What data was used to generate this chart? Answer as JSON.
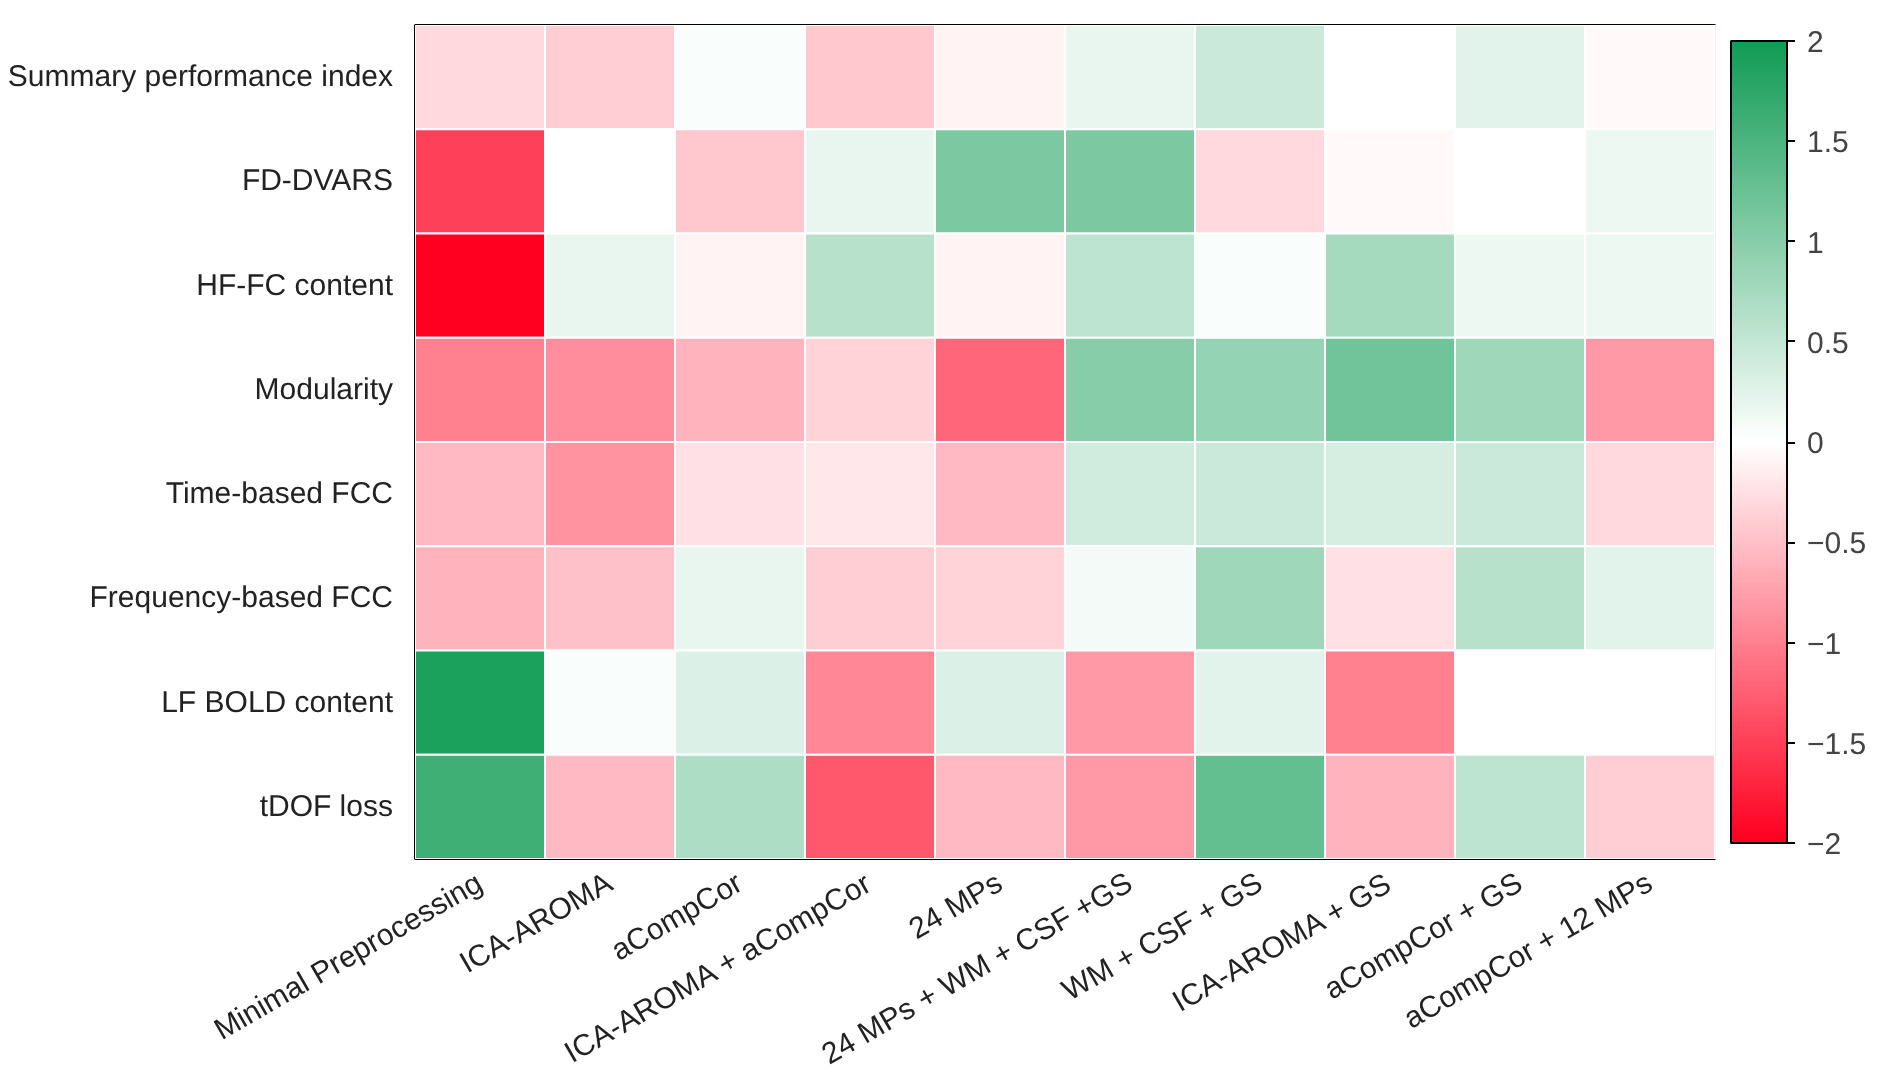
{
  "chart_data": {
    "type": "heatmap",
    "categories": [
      "Minimal Preprocessing",
      "ICA-AROMA",
      "aCompCor",
      "ICA-AROMA + aCompCor",
      "24 MPs",
      "24 MPs + WM + CSF +GS",
      "WM + CSF + GS",
      "ICA-AROMA + GS",
      "aCompCor + GS",
      "aCompCor + 12 MPs"
    ],
    "y_categories": [
      "Summary performance index",
      "FD-DVARS",
      "HF-FC content",
      "Modularity",
      "Time-based FCC",
      "Frequency-based FCC",
      "LF BOLD content",
      "tDOF loss"
    ],
    "cells": [
      [
        -0.3,
        -0.4,
        0.05,
        -0.45,
        -0.1,
        0.2,
        0.45,
        0.0,
        0.25,
        -0.05
      ],
      [
        -1.5,
        0.0,
        -0.45,
        0.2,
        1.1,
        1.1,
        -0.3,
        -0.05,
        0.0,
        0.15
      ],
      [
        -2.0,
        0.2,
        -0.1,
        0.6,
        -0.1,
        0.55,
        0.05,
        0.75,
        0.15,
        0.15
      ],
      [
        -1.0,
        -0.9,
        -0.6,
        -0.35,
        -1.2,
        1.0,
        0.9,
        1.2,
        0.8,
        -0.8
      ],
      [
        -0.55,
        -0.85,
        -0.25,
        -0.2,
        -0.55,
        0.4,
        0.45,
        0.35,
        0.45,
        -0.3
      ],
      [
        -0.6,
        -0.5,
        0.2,
        -0.4,
        -0.35,
        0.1,
        0.8,
        -0.25,
        0.6,
        0.25
      ],
      [
        1.9,
        0.05,
        0.3,
        -0.95,
        0.3,
        -0.8,
        0.25,
        -1.0,
        0.0,
        0.0
      ],
      [
        1.6,
        -0.55,
        0.7,
        -1.3,
        -0.55,
        -0.8,
        1.3,
        -0.6,
        0.55,
        -0.4
      ]
    ],
    "clim": [
      -2,
      2
    ],
    "cticks": [
      -2,
      -1.5,
      -1,
      -0.5,
      0,
      0.5,
      1,
      1.5,
      2
    ]
  }
}
